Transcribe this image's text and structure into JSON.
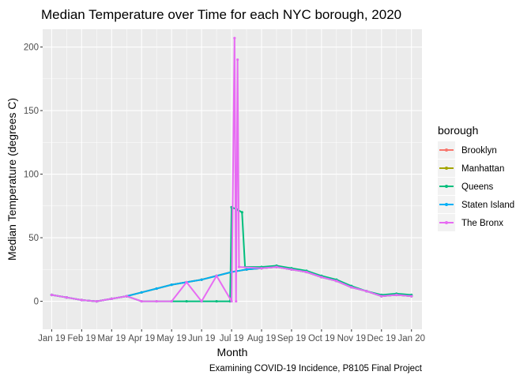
{
  "chart_data": {
    "type": "line",
    "title": "Median Temperature over Time for each NYC borough, 2020",
    "xlabel": "Month",
    "ylabel": "Median Temperature (degrees C)",
    "caption": "Examining COVID-19 Incidence, P8105 Final Project",
    "x_tick_labels": [
      "Jan 19",
      "Feb 19",
      "Mar 19",
      "Apr 19",
      "May 19",
      "Jun 19",
      "Jul 19",
      "Aug 19",
      "Sep 19",
      "Oct 19",
      "Nov 19",
      "Dec 19",
      "Jan 20"
    ],
    "y_ticks": [
      0,
      50,
      100,
      150,
      200
    ],
    "ylim": [
      -22,
      214
    ],
    "xlim_months": [
      -0.3,
      12.35
    ],
    "legend": {
      "title": "borough",
      "placement": "right"
    },
    "grid": true,
    "background": "#ebebeb",
    "series": [
      {
        "name": "Brooklyn",
        "color": "#F8766D",
        "points": [
          [
            0,
            5
          ],
          [
            0.5,
            3
          ],
          [
            1,
            1
          ],
          [
            1.5,
            0
          ],
          [
            2,
            2
          ],
          [
            2.5,
            4
          ],
          [
            3,
            7
          ],
          [
            3.5,
            10
          ],
          [
            4,
            13
          ],
          [
            4.5,
            15
          ],
          [
            5,
            17
          ],
          [
            5.5,
            20
          ],
          [
            6,
            23
          ],
          [
            6.5,
            25
          ],
          [
            7,
            26
          ],
          [
            7.5,
            27
          ],
          [
            8,
            25
          ],
          [
            8.5,
            23
          ],
          [
            9,
            19
          ],
          [
            9.5,
            16
          ],
          [
            10,
            11
          ],
          [
            10.5,
            8
          ],
          [
            11,
            4
          ],
          [
            11.5,
            5
          ],
          [
            12,
            4
          ]
        ]
      },
      {
        "name": "Manhattan",
        "color": "#A3A500",
        "points": [
          [
            0,
            5
          ],
          [
            0.5,
            3
          ],
          [
            1,
            1
          ],
          [
            1.5,
            0
          ],
          [
            2,
            2
          ],
          [
            2.5,
            4
          ],
          [
            3,
            7
          ],
          [
            3.5,
            10
          ],
          [
            4,
            13
          ],
          [
            4.5,
            15
          ],
          [
            5,
            17
          ],
          [
            5.5,
            20
          ],
          [
            6,
            23
          ],
          [
            6.5,
            25
          ],
          [
            7,
            26
          ],
          [
            7.5,
            27
          ],
          [
            8,
            25
          ],
          [
            8.5,
            23
          ],
          [
            9,
            19
          ],
          [
            9.5,
            16
          ],
          [
            10,
            11
          ],
          [
            10.5,
            8
          ],
          [
            11,
            4
          ],
          [
            11.5,
            5
          ],
          [
            12,
            4
          ]
        ]
      },
      {
        "name": "Queens",
        "color": "#00BF7D",
        "points": [
          [
            0,
            5
          ],
          [
            0.5,
            3
          ],
          [
            1,
            1
          ],
          [
            1.5,
            0
          ],
          [
            2,
            2
          ],
          [
            2.5,
            4
          ],
          [
            3,
            0
          ],
          [
            3.5,
            0
          ],
          [
            4,
            0
          ],
          [
            4.5,
            0
          ],
          [
            5,
            0
          ],
          [
            5.5,
            0
          ],
          [
            5.95,
            0
          ],
          [
            6,
            74
          ],
          [
            6.2,
            72
          ],
          [
            6.35,
            70
          ],
          [
            6.45,
            27
          ],
          [
            7,
            27
          ],
          [
            7.5,
            28
          ],
          [
            8,
            26
          ],
          [
            8.5,
            24
          ],
          [
            9,
            20
          ],
          [
            9.5,
            17
          ],
          [
            10,
            12
          ],
          [
            10.5,
            8
          ],
          [
            11,
            5
          ],
          [
            11.5,
            6
          ],
          [
            12,
            5
          ]
        ]
      },
      {
        "name": "Staten Island",
        "color": "#00B0F6",
        "points": [
          [
            0,
            5
          ],
          [
            0.5,
            3
          ],
          [
            1,
            1
          ],
          [
            1.5,
            0
          ],
          [
            2,
            2
          ],
          [
            2.5,
            4
          ],
          [
            3,
            7
          ],
          [
            3.5,
            10
          ],
          [
            4,
            13
          ],
          [
            4.5,
            15
          ],
          [
            5,
            17
          ],
          [
            5.5,
            20
          ],
          [
            6,
            23
          ],
          [
            6.5,
            25
          ],
          [
            7,
            26
          ],
          [
            7.5,
            27
          ],
          [
            8,
            25
          ],
          [
            8.5,
            23
          ],
          [
            9,
            19
          ],
          [
            9.5,
            16
          ],
          [
            10,
            11
          ],
          [
            10.5,
            8
          ],
          [
            11,
            4
          ],
          [
            11.5,
            5
          ],
          [
            12,
            4
          ]
        ]
      },
      {
        "name": "The Bronx",
        "color": "#E76BF3",
        "points": [
          [
            0,
            5
          ],
          [
            0.5,
            3
          ],
          [
            1,
            1
          ],
          [
            1.5,
            0
          ],
          [
            2,
            2
          ],
          [
            2.5,
            4
          ],
          [
            3,
            0
          ],
          [
            3.5,
            0
          ],
          [
            4,
            0
          ],
          [
            4.5,
            15
          ],
          [
            5,
            0
          ],
          [
            5.5,
            20
          ],
          [
            6,
            0
          ],
          [
            6.1,
            207
          ],
          [
            6.15,
            0
          ],
          [
            6.2,
            190
          ],
          [
            6.25,
            27
          ],
          [
            7,
            26
          ],
          [
            7.5,
            27
          ],
          [
            8,
            25
          ],
          [
            8.5,
            23
          ],
          [
            9,
            19
          ],
          [
            9.5,
            16
          ],
          [
            10,
            11
          ],
          [
            10.5,
            8
          ],
          [
            11,
            4
          ],
          [
            11.5,
            5
          ],
          [
            12,
            4
          ]
        ]
      }
    ]
  }
}
